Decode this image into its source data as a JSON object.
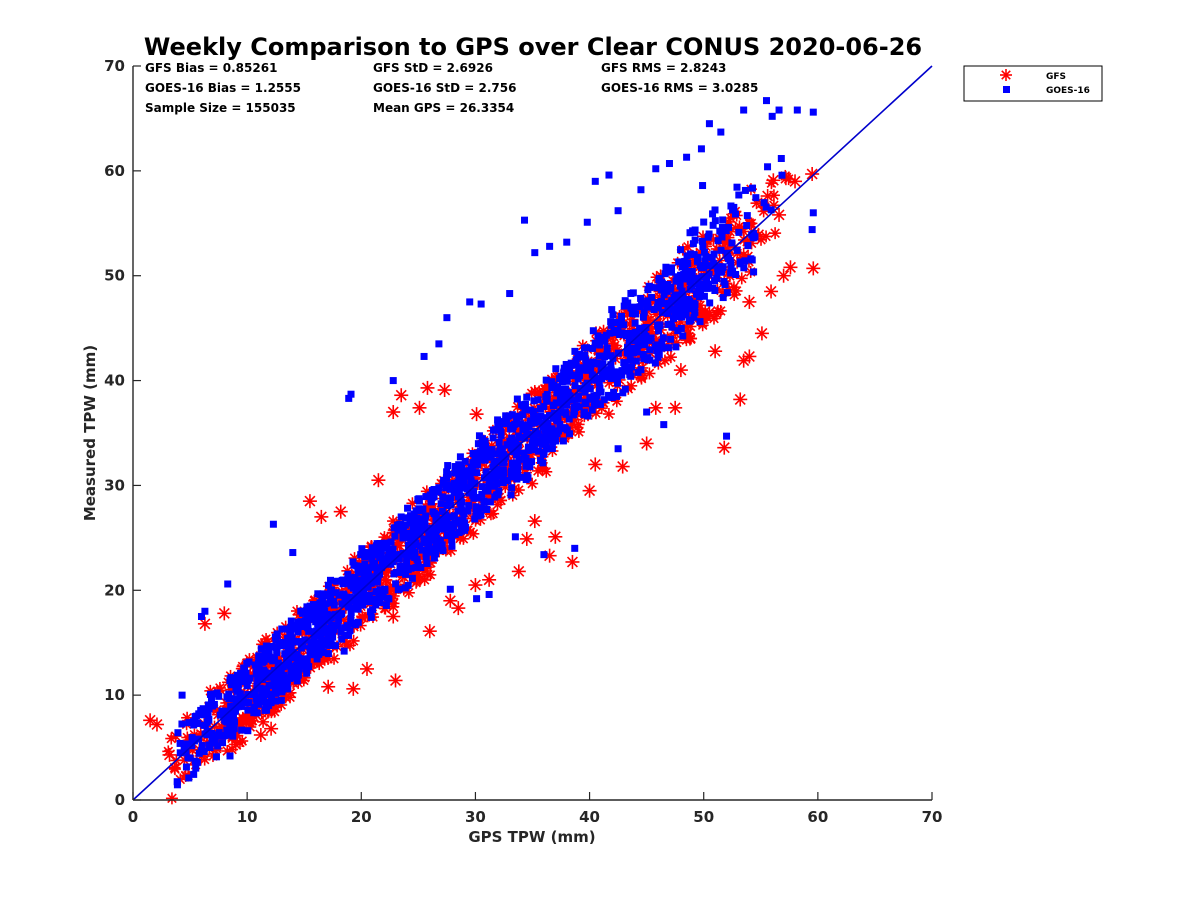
{
  "chart_data": {
    "type": "scatter",
    "title": "Weekly Comparison to GPS over Clear CONUS 2020-06-26",
    "xlabel": "GPS TPW (mm)",
    "ylabel": "Measured TPW (mm)",
    "xlim": [
      0,
      70
    ],
    "ylim": [
      0,
      70
    ],
    "xticks": [
      0,
      10,
      20,
      30,
      40,
      50,
      60,
      70
    ],
    "yticks": [
      0,
      10,
      20,
      30,
      40,
      50,
      60,
      70
    ],
    "grid": false,
    "legend_position": "outside-top-right",
    "reference_line": {
      "from": [
        0,
        0
      ],
      "to": [
        70,
        70
      ],
      "color": "#0000cc"
    },
    "stats": [
      [
        "GFS Bias = 0.85261",
        "GFS StD = 2.6926",
        "GFS RMS = 2.8243"
      ],
      [
        "GOES-16 Bias = 1.2555",
        "GOES-16 StD = 2.756",
        "GOES-16 RMS = 3.0285"
      ],
      [
        "Sample Size = 155035",
        "Mean GPS = 26.3354",
        ""
      ]
    ],
    "series": [
      {
        "name": "GFS",
        "marker": "asterisk",
        "color": "#ff0000",
        "points": [
          [
            1.5,
            7.6
          ],
          [
            2.1,
            7.2
          ],
          [
            3.2,
            4.3
          ],
          [
            6.3,
            16.8
          ],
          [
            8,
            17.8
          ],
          [
            11.2,
            6.2
          ],
          [
            12.1,
            6.8
          ],
          [
            15.5,
            28.5
          ],
          [
            16.5,
            27
          ],
          [
            18.2,
            27.5
          ],
          [
            21.5,
            30.5
          ],
          [
            22.8,
            37
          ],
          [
            23.5,
            38.6
          ],
          [
            25.1,
            37.4
          ],
          [
            25.8,
            39.3
          ],
          [
            27.3,
            39.1
          ],
          [
            30.1,
            36.8
          ],
          [
            17.1,
            10.8
          ],
          [
            19.3,
            10.6
          ],
          [
            23,
            11.4
          ],
          [
            26,
            16.1
          ],
          [
            28.5,
            18.3
          ],
          [
            31.2,
            21
          ],
          [
            33.8,
            21.8
          ],
          [
            36.5,
            23.3
          ],
          [
            38.5,
            22.7
          ],
          [
            40.5,
            32
          ],
          [
            42.9,
            31.8
          ],
          [
            45.8,
            37.4
          ],
          [
            47.5,
            37.4
          ],
          [
            51.8,
            33.6
          ],
          [
            48,
            41
          ],
          [
            51,
            42.8
          ],
          [
            53.5,
            41.9
          ],
          [
            54,
            42.3
          ],
          [
            55.1,
            44.5
          ],
          [
            55.9,
            48.5
          ],
          [
            57,
            50
          ],
          [
            57.6,
            50.8
          ],
          [
            59.6,
            50.7
          ],
          [
            56.1,
            59.1
          ],
          [
            57.2,
            59.3
          ],
          [
            58,
            59
          ],
          [
            59.5,
            59.7
          ],
          [
            55.6,
            57.6
          ],
          [
            56.6,
            55.8
          ],
          [
            54,
            47.5
          ],
          [
            53.2,
            38.2
          ],
          [
            22.8,
            17.5
          ],
          [
            24.8,
            23.2
          ],
          [
            34.5,
            24.9
          ],
          [
            37,
            25.1
          ],
          [
            27.8,
            19
          ],
          [
            20.5,
            12.5
          ],
          [
            12,
            9
          ],
          [
            9,
            5.3
          ],
          [
            6,
            4.2
          ],
          [
            4.5,
            3.8
          ],
          [
            45,
            34
          ],
          [
            40,
            29.5
          ],
          [
            35.2,
            26.6
          ],
          [
            48.8,
            44
          ],
          [
            50.5,
            46.5
          ],
          [
            52.2,
            48.7
          ],
          [
            53.5,
            52
          ],
          [
            54.8,
            53.9
          ],
          [
            30,
            20.5
          ],
          [
            44.5,
            40.5
          ]
        ],
        "band": {
          "x0": 2.5,
          "x1": 58,
          "lo_slope": 0.98,
          "lo_int": -4.5,
          "hi_slope": 1.02,
          "hi_int": 3.8,
          "density": 1100
        }
      },
      {
        "name": "GOES-16",
        "marker": "square",
        "color": "#0000ff",
        "points": [
          [
            4.3,
            10
          ],
          [
            6,
            17.5
          ],
          [
            6.3,
            18
          ],
          [
            8.3,
            20.6
          ],
          [
            12.3,
            26.3
          ],
          [
            14,
            23.6
          ],
          [
            18.9,
            38.3
          ],
          [
            19.1,
            38.7
          ],
          [
            22.8,
            40
          ],
          [
            25.5,
            42.3
          ],
          [
            26.8,
            43.5
          ],
          [
            27.5,
            46
          ],
          [
            29.5,
            47.5
          ],
          [
            30.5,
            47.3
          ],
          [
            33,
            48.3
          ],
          [
            34.3,
            55.3
          ],
          [
            35.2,
            52.2
          ],
          [
            36.5,
            52.8
          ],
          [
            38,
            53.2
          ],
          [
            39.8,
            55.1
          ],
          [
            40.5,
            59
          ],
          [
            41.7,
            59.6
          ],
          [
            42.5,
            56.2
          ],
          [
            44.5,
            58.2
          ],
          [
            45.8,
            60.2
          ],
          [
            47,
            60.7
          ],
          [
            48.5,
            61.3
          ],
          [
            49.8,
            62.1
          ],
          [
            50.5,
            64.5
          ],
          [
            51.5,
            63.7
          ],
          [
            53.5,
            65.8
          ],
          [
            55.5,
            66.7
          ],
          [
            56,
            65.2
          ],
          [
            56.6,
            65.8
          ],
          [
            58.2,
            65.8
          ],
          [
            59.6,
            65.6
          ],
          [
            59.6,
            56
          ],
          [
            59.5,
            54.4
          ],
          [
            52,
            34.7
          ],
          [
            46.5,
            35.8
          ],
          [
            45,
            37
          ],
          [
            42.5,
            33.5
          ],
          [
            36,
            23.4
          ],
          [
            38.7,
            24
          ],
          [
            33.5,
            25.1
          ],
          [
            31.2,
            19.6
          ],
          [
            30.1,
            19.2
          ],
          [
            27.8,
            20.1
          ],
          [
            24.8,
            24.5
          ],
          [
            18.5,
            14.2
          ],
          [
            13,
            9.5
          ],
          [
            8.5,
            4.2
          ],
          [
            5,
            4
          ],
          [
            48.8,
            54.1
          ],
          [
            49.9,
            58.6
          ],
          [
            52.4,
            50.6
          ],
          [
            54.2,
            53.9
          ]
        ],
        "band": {
          "x0": 3.2,
          "x1": 57,
          "lo_slope": 0.97,
          "lo_int": -3.2,
          "hi_slope": 1.05,
          "hi_int": 3.2,
          "density": 1600
        }
      }
    ]
  }
}
